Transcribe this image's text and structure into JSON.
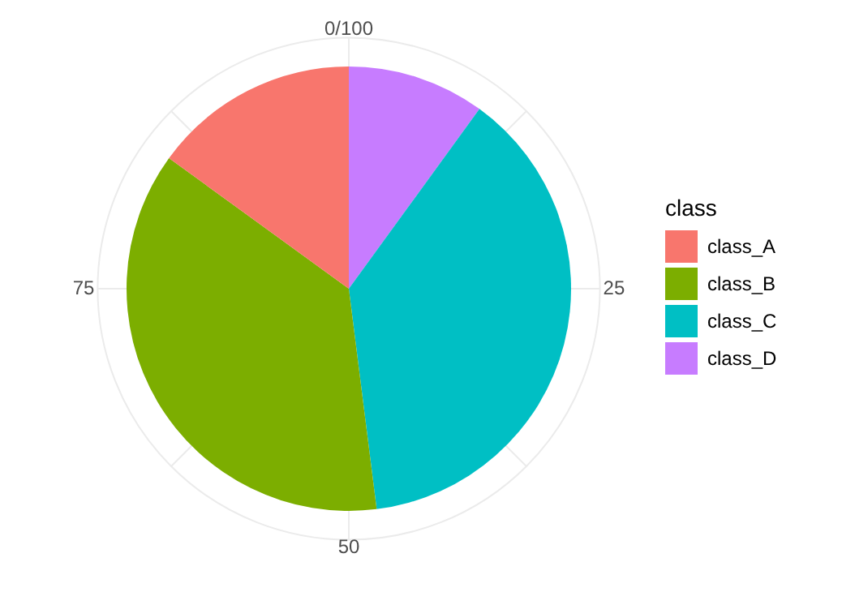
{
  "chart_data": {
    "type": "pie",
    "legend_title": "class",
    "legend": "right",
    "grid": true,
    "categories": [
      "class_A",
      "class_B",
      "class_C",
      "class_D"
    ],
    "values": [
      15,
      37,
      38,
      10
    ],
    "colors": [
      "#f8766d",
      "#7cae00",
      "#00bfc4",
      "#c77cff"
    ],
    "annotations": [
      "0/100",
      "25",
      "50",
      "75"
    ]
  }
}
